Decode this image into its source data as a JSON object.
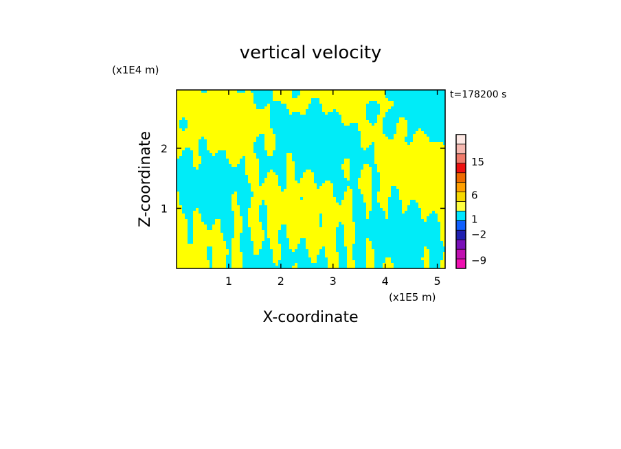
{
  "chart_data": {
    "type": "heatmap",
    "title": "vertical velocity",
    "xlabel": "X-coordinate",
    "ylabel": "Z-coordinate",
    "x_unit": "(x1E5 m)",
    "y_unit": "(x1E4 m)",
    "time_label": "t=178200 s",
    "xlim": [
      0,
      5.15
    ],
    "ylim": [
      0,
      2.97
    ],
    "xticks": [
      1,
      2,
      3,
      4,
      5
    ],
    "yticks": [
      1,
      2
    ],
    "xtick_labels": [
      "1",
      "2",
      "3",
      "4",
      "5"
    ],
    "ytick_labels": [
      "1",
      "2"
    ],
    "colorbar": {
      "label_values": [
        15,
        6,
        1,
        -2,
        -9
      ],
      "tick_labels": [
        "15",
        "6",
        "1",
        "−2",
        "−9"
      ],
      "colors_top_to_bottom": [
        "#fde8e4",
        "#f6b8b0",
        "#f07a6a",
        "#ee1010",
        "#ee6a00",
        "#ffa000",
        "#f7d800",
        "#ffff40",
        "#00e6ff",
        "#1060ff",
        "#2020b0",
        "#7a10b8",
        "#c010b0",
        "#ee10b0"
      ]
    },
    "field_colors": {
      "positive": "#ffff00",
      "negative": "#00ecf8"
    }
  }
}
